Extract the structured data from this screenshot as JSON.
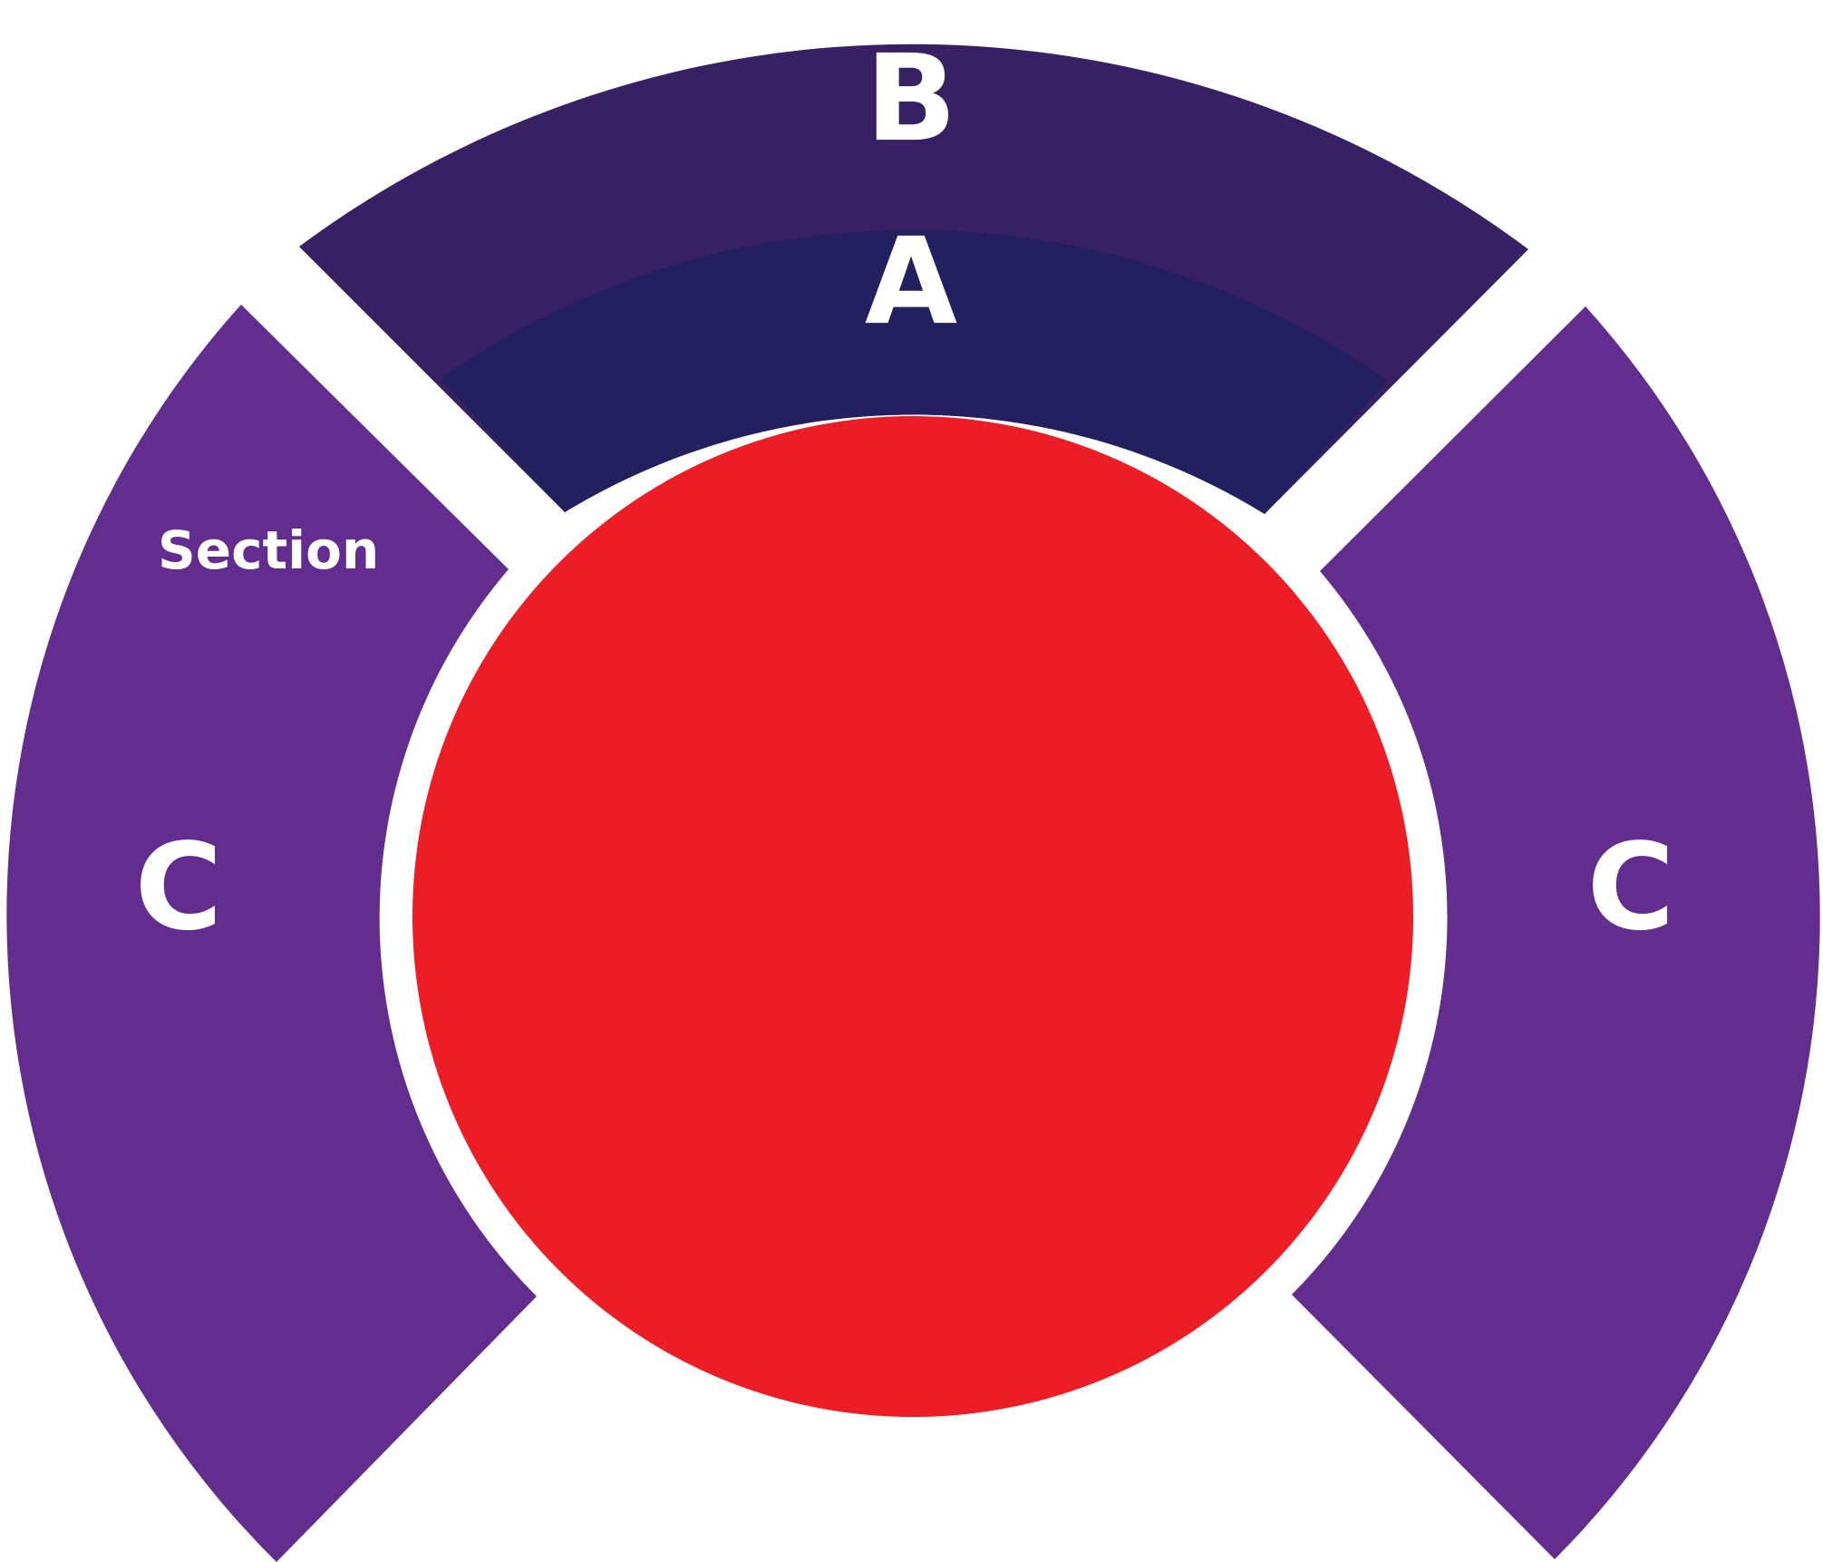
{
  "sections": {
    "label": "Section",
    "inner_top": {
      "letter": "A"
    },
    "outer_top": {
      "letter": "B"
    },
    "left": {
      "letter": "C"
    },
    "right": {
      "letter": "C"
    }
  },
  "colors": {
    "inner_top": "#22205F",
    "outer_top": "#372063",
    "sides": "#632D8F",
    "center": "#ED1D25",
    "background": "#FFFFFF"
  }
}
